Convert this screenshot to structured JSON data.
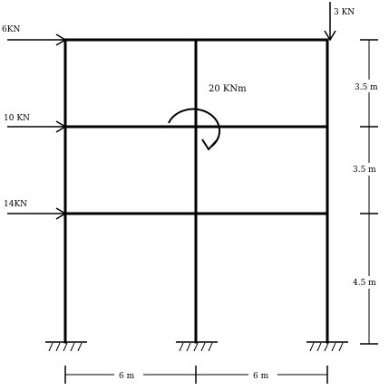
{
  "loads": {
    "top": "6KN",
    "middle": "10 KN",
    "bottom": "14KN",
    "vertical": "3 KN",
    "moment": "20 KNm"
  },
  "dimensions": {
    "story_top": "3.5  m",
    "story_middle": "3.5  m",
    "story_bottom": "4.5 m",
    "bay_left": "6 m",
    "bay_right": "6 m"
  }
}
